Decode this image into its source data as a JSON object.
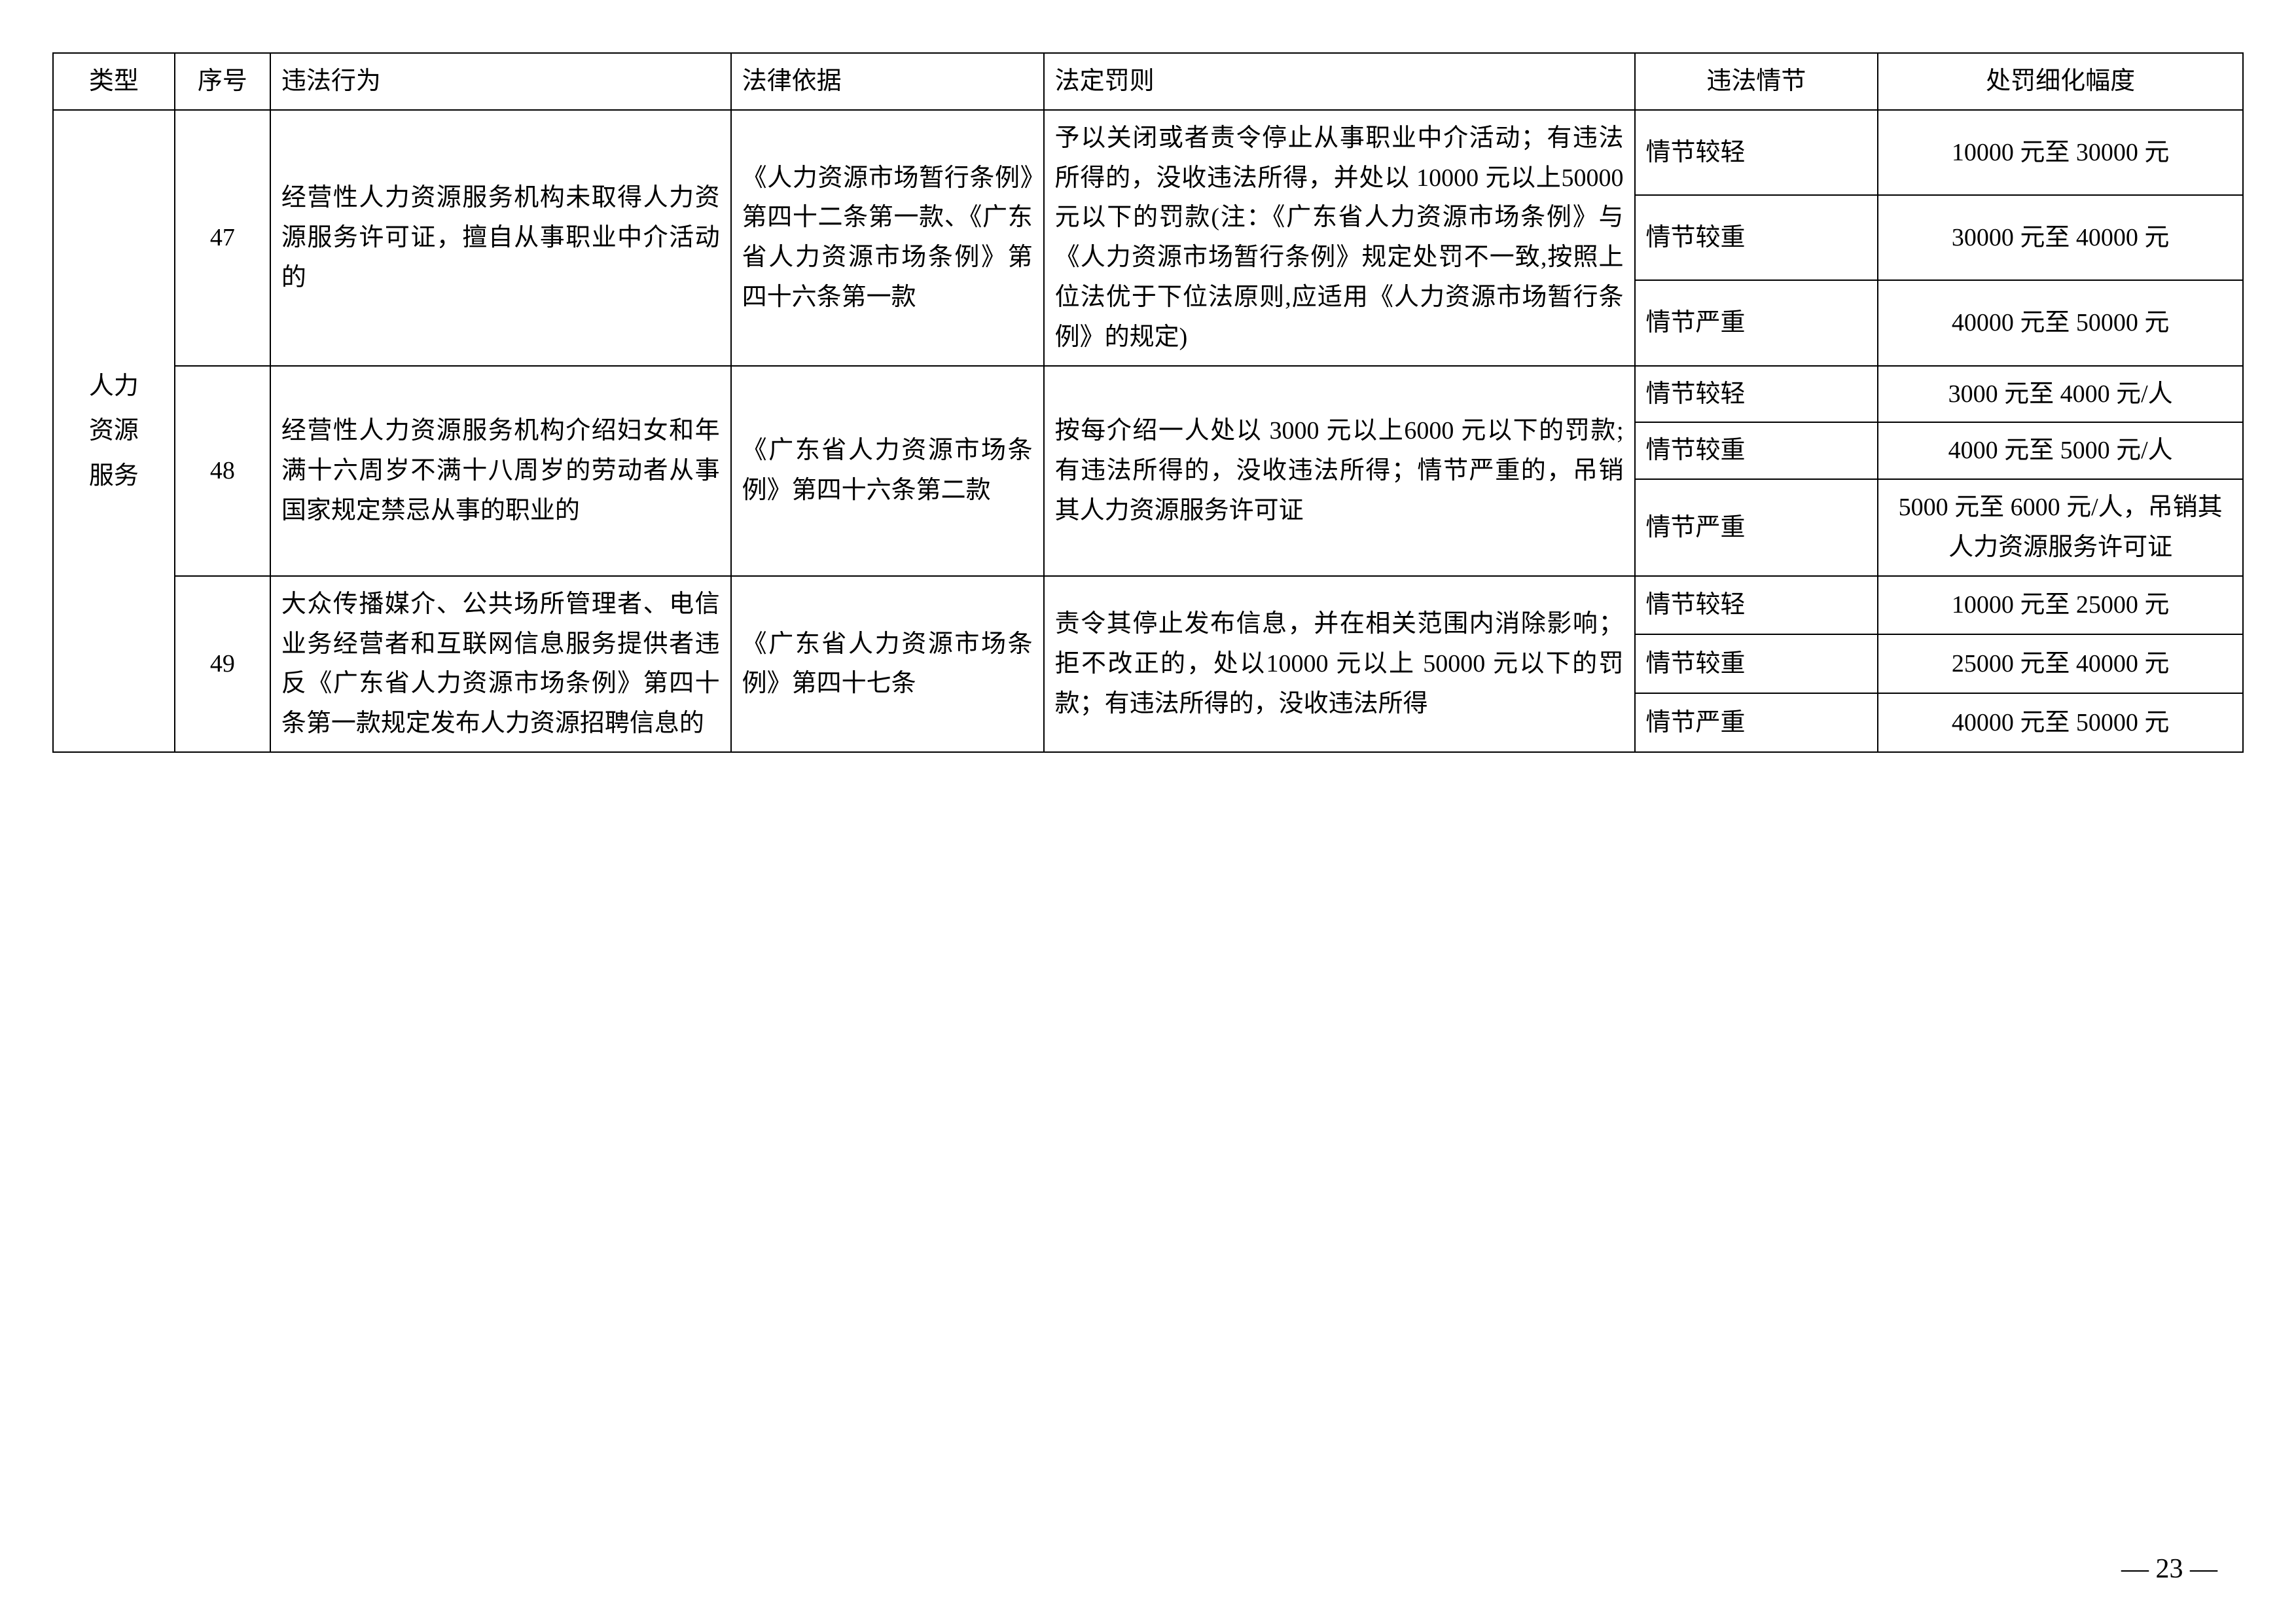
{
  "headers": {
    "type": "类型",
    "num": "序号",
    "violation": "违法行为",
    "basis": "法律依据",
    "penalty": "法定罚则",
    "circumstance": "违法情节",
    "range": "处罚细化幅度"
  },
  "category": "人力资源服务",
  "rows": [
    {
      "num": "47",
      "violation": "经营性人力资源服务机构未取得人力资源服务许可证，擅自从事职业中介活动的",
      "basis": "《人力资源市场暂行条例》第四十二条第一款、《广东省人力资源市场条例》第四十六条第一款",
      "penalty": "予以关闭或者责令停止从事职业中介活动；有违法所得的，没收违法所得，并处以 10000 元以上50000 元以下的罚款(注：《广东省人力资源市场条例》与《人力资源市场暂行条例》规定处罚不一致,按照上位法优于下位法原则,应适用《人力资源市场暂行条例》的规定)",
      "details": [
        {
          "circ": "情节较轻",
          "range": "10000 元至 30000 元"
        },
        {
          "circ": "情节较重",
          "range": "30000 元至 40000 元"
        },
        {
          "circ": "情节严重",
          "range": "40000 元至 50000 元"
        }
      ]
    },
    {
      "num": "48",
      "violation": "经营性人力资源服务机构介绍妇女和年满十六周岁不满十八周岁的劳动者从事国家规定禁忌从事的职业的",
      "basis": "《广东省人力资源市场条例》第四十六条第二款",
      "penalty": "按每介绍一人处以 3000 元以上6000 元以下的罚款;有违法所得的，没收违法所得；情节严重的，吊销其人力资源服务许可证",
      "details": [
        {
          "circ": "情节较轻",
          "range": "3000 元至 4000 元/人"
        },
        {
          "circ": "情节较重",
          "range": "4000 元至 5000 元/人"
        },
        {
          "circ": "情节严重",
          "range": "5000 元至 6000 元/人，吊销其人力资源服务许可证"
        }
      ]
    },
    {
      "num": "49",
      "violation": "大众传播媒介、公共场所管理者、电信业务经营者和互联网信息服务提供者违反《广东省人力资源市场条例》第四十条第一款规定发布人力资源招聘信息的",
      "basis": "《广东省人力资源市场条例》第四十七条",
      "penalty": "责令其停止发布信息，并在相关范围内消除影响；拒不改正的，处以10000 元以上 50000 元以下的罚款；有违法所得的，没收违法所得",
      "details": [
        {
          "circ": "情节较轻",
          "range": "10000 元至 25000 元"
        },
        {
          "circ": "情节较重",
          "range": "25000 元至 40000 元"
        },
        {
          "circ": "情节严重",
          "range": "40000 元至 50000 元"
        }
      ]
    }
  ],
  "pageNumber": "— 23 —"
}
